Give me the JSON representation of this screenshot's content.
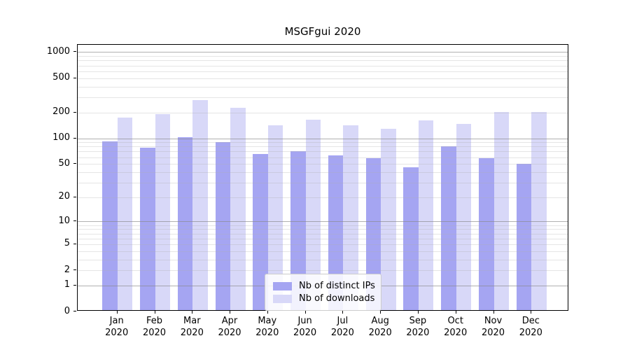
{
  "title": "MSGFgui 2020",
  "colors": {
    "ips_bar": "#a5a5f2",
    "downloads_bar": "#d8d8f8",
    "major_gridline": "#b3b3b3",
    "minor_gridline": "#e8e8e8",
    "axis_frame": "#000000",
    "legend_border": "#cccccc"
  },
  "legend": {
    "position": "lower center"
  },
  "chart_data": {
    "type": "bar",
    "title": "MSGFgui 2020",
    "categories": [
      "Jan 2020",
      "Feb 2020",
      "Mar 2020",
      "Apr 2020",
      "May 2020",
      "Jun 2020",
      "Jul 2020",
      "Aug 2020",
      "Sep 2020",
      "Oct 2020",
      "Nov 2020",
      "Dec 2020"
    ],
    "series": [
      {
        "name": "Nb of distinct IPs",
        "color": "#a5a5f2",
        "values": [
          88,
          75,
          100,
          87,
          63,
          68,
          61,
          56,
          44,
          78,
          56,
          48
        ]
      },
      {
        "name": "Nb of downloads",
        "color": "#d8d8f8",
        "values": [
          167,
          183,
          268,
          218,
          136,
          158,
          136,
          124,
          157,
          142,
          195,
          195
        ]
      }
    ],
    "xlabel": "",
    "ylabel": "",
    "yscale": "log1p",
    "yticks": [
      0,
      1,
      2,
      5,
      10,
      20,
      50,
      100,
      200,
      500,
      1000
    ],
    "major_grid_values": [
      1,
      10,
      100,
      1000
    ],
    "ylim": [
      0,
      1216
    ],
    "grid": "on",
    "legend_position": "lower center"
  }
}
